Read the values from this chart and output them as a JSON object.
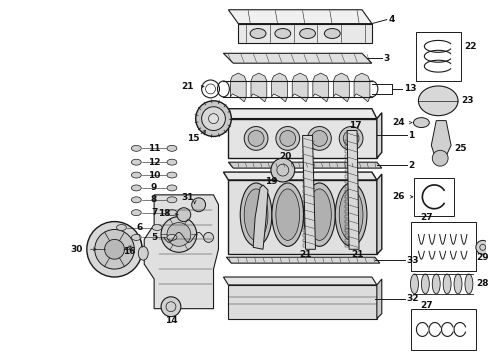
{
  "bg_color": "#ffffff",
  "fig_width": 4.9,
  "fig_height": 3.6,
  "dpi": 100,
  "lc": "#1a1a1a",
  "tc": "#111111",
  "fs": 6.5
}
